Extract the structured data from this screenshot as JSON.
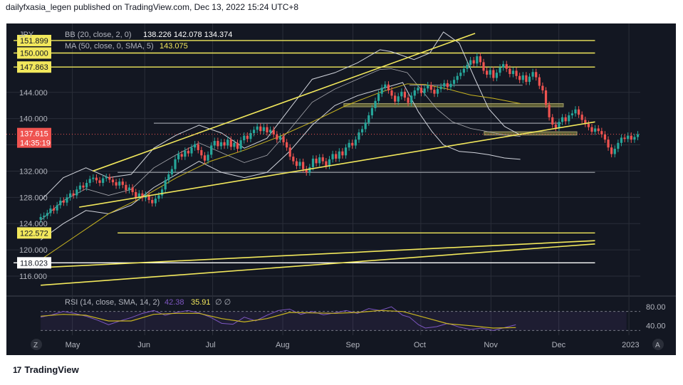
{
  "header": {
    "publisher_line": "dailyfxasia_legen published on TradingView.com, Dec 13, 2022 15:24 UTC+8"
  },
  "footer": {
    "brand": "TradingView",
    "logo_text": "17"
  },
  "colors": {
    "background": "#131722",
    "grid": "#2a2e39",
    "text": "#b2b5be",
    "up": "#26a69a",
    "down": "#ef5350",
    "yellow": "#f2e85c",
    "bb": "#d1d4dc",
    "ma": "#c9b520",
    "rsi": "#7e57c2",
    "rsi_ma": "#c9b520"
  },
  "chart_data": {
    "type": "candlestick",
    "symbol": "JPY",
    "legend": {
      "bb_label": "BB (20, close, 2, 0)",
      "bb_values": [
        "138.226",
        "142.078",
        "134.374"
      ],
      "ma_label": "MA (50, close, 0, SMA, 5)",
      "ma_value": "143.075"
    },
    "price_axis": {
      "ticks": [
        "144.000",
        "140.000",
        "136.000",
        "132.000",
        "128.000",
        "124.000",
        "120.000",
        "116.000"
      ],
      "tick_values": [
        144,
        140,
        136,
        132,
        128,
        124,
        120,
        116
      ],
      "range": [
        113.5,
        154.5
      ],
      "highlighted_labels": [
        {
          "text": "151.899",
          "value": 151.899,
          "style": "yellow"
        },
        {
          "text": "150.000",
          "value": 150.0,
          "style": "yellow"
        },
        {
          "text": "147.863",
          "value": 147.863,
          "style": "yellow"
        },
        {
          "text": "122.572",
          "value": 122.572,
          "style": "yellow"
        },
        {
          "text": "118.023",
          "value": 118.023,
          "style": "white"
        }
      ],
      "current_price": {
        "text": "137.615",
        "countdown": "14:35:19",
        "value": 137.615
      }
    },
    "time_axis": {
      "labels": [
        "May",
        "Jun",
        "Jul",
        "Aug",
        "Sep",
        "Oct",
        "Nov",
        "Dec",
        "2023"
      ],
      "label_days": [
        14,
        46,
        76,
        107,
        138,
        168,
        199,
        229,
        260
      ],
      "range_days": [
        -12,
        265
      ]
    },
    "candles": {
      "start_day": 0,
      "closes": [
        125.0,
        125.2,
        125.6,
        126.3,
        126.0,
        126.8,
        127.5,
        127.2,
        128.0,
        128.6,
        128.3,
        129.2,
        129.8,
        129.5,
        130.2,
        130.8,
        131.0,
        130.6,
        130.2,
        130.9,
        131.1,
        130.7,
        130.3,
        129.8,
        130.4,
        129.9,
        129.1,
        129.5,
        128.8,
        128.0,
        128.6,
        127.9,
        128.4,
        127.6,
        127.1,
        127.8,
        128.3,
        129.2,
        130.6,
        131.5,
        132.3,
        133.8,
        134.6,
        134.2,
        135.1,
        134.7,
        135.6,
        136.1,
        135.2,
        134.4,
        133.6,
        134.5,
        135.9,
        136.6,
        135.8,
        136.4,
        135.9,
        136.8,
        135.7,
        136.3,
        135.4,
        136.7,
        137.4,
        136.9,
        137.8,
        138.3,
        138.8,
        138.1,
        138.7,
        137.9,
        138.3,
        137.6,
        136.8,
        137.3,
        136.4,
        135.6,
        134.2,
        133.5,
        132.8,
        133.4,
        132.3,
        131.8,
        132.6,
        133.9,
        133.2,
        134.1,
        133.5,
        132.8,
        133.8,
        134.6,
        133.9,
        135.0,
        134.4,
        135.6,
        136.3,
        135.9,
        136.8,
        137.9,
        138.4,
        139.4,
        140.5,
        141.6,
        142.7,
        143.8,
        144.7,
        145.2,
        144.3,
        143.5,
        142.6,
        143.4,
        144.1,
        143.2,
        142.4,
        143.5,
        144.3,
        144.7,
        143.9,
        144.6,
        145.1,
        144.4,
        143.8,
        144.5,
        144.9,
        145.4,
        144.8,
        145.3,
        145.9,
        146.5,
        147.0,
        147.6,
        148.2,
        148.9,
        148.4,
        149.5,
        148.6,
        147.3,
        146.7,
        147.4,
        146.2,
        147.0,
        147.8,
        148.3,
        147.6,
        146.8,
        147.3,
        146.5,
        145.9,
        146.6,
        145.6,
        146.4,
        147.1,
        146.3,
        145.0,
        144.3,
        142.1,
        140.2,
        139.1,
        138.6,
        139.5,
        140.2,
        139.6,
        140.5,
        140.8,
        141.4,
        140.6,
        139.8,
        139.2,
        138.7,
        138.0,
        138.5,
        138.1,
        137.6,
        136.8,
        135.6,
        134.6,
        135.4,
        136.3,
        137.1,
        136.9,
        137.4,
        136.8,
        137.2,
        137.6
      ],
      "spacing_days": 1.45
    },
    "bollinger_upper": [
      [
        0,
        127.5
      ],
      [
        10,
        131
      ],
      [
        20,
        132.5
      ],
      [
        30,
        131
      ],
      [
        40,
        131.5
      ],
      [
        50,
        135.5
      ],
      [
        60,
        137.5
      ],
      [
        70,
        139
      ],
      [
        80,
        137.8
      ],
      [
        90,
        135.5
      ],
      [
        100,
        137
      ],
      [
        110,
        141.5
      ],
      [
        120,
        146
      ],
      [
        130,
        147
      ],
      [
        140,
        148.5
      ],
      [
        150,
        150.5
      ],
      [
        155,
        150.2
      ],
      [
        165,
        149
      ],
      [
        172,
        150
      ],
      [
        178,
        153.2
      ],
      [
        185,
        151.5
      ],
      [
        192,
        146
      ],
      [
        198,
        141.5
      ],
      [
        205,
        138.8
      ],
      [
        212,
        137.5
      ]
    ],
    "bollinger_lower": [
      [
        0,
        121.5
      ],
      [
        10,
        124
      ],
      [
        20,
        126
      ],
      [
        30,
        125.5
      ],
      [
        40,
        126.8
      ],
      [
        50,
        129.5
      ],
      [
        60,
        131.5
      ],
      [
        70,
        133.5
      ],
      [
        80,
        131.8
      ],
      [
        90,
        131
      ],
      [
        100,
        131.8
      ],
      [
        110,
        135
      ],
      [
        120,
        139
      ],
      [
        130,
        142
      ],
      [
        140,
        143.5
      ],
      [
        150,
        144.5
      ],
      [
        155,
        145
      ],
      [
        160,
        145.5
      ],
      [
        167,
        141
      ],
      [
        173,
        138
      ],
      [
        178,
        136
      ],
      [
        185,
        135
      ],
      [
        192,
        134.8
      ],
      [
        198,
        134.5
      ],
      [
        205,
        134
      ],
      [
        212,
        133.8
      ]
    ],
    "bollinger_mid": [
      [
        0,
        124.5
      ],
      [
        10,
        127.5
      ],
      [
        20,
        129.3
      ],
      [
        30,
        128.3
      ],
      [
        40,
        129.2
      ],
      [
        50,
        132.5
      ],
      [
        60,
        134.5
      ],
      [
        70,
        136.3
      ],
      [
        80,
        134.8
      ],
      [
        90,
        133.3
      ],
      [
        100,
        134.4
      ],
      [
        110,
        138.3
      ],
      [
        120,
        142.5
      ],
      [
        130,
        144.5
      ],
      [
        140,
        146
      ],
      [
        150,
        147.5
      ],
      [
        155,
        147.6
      ],
      [
        162,
        147
      ],
      [
        168,
        144.5
      ],
      [
        175,
        141.5
      ],
      [
        182,
        139.5
      ],
      [
        190,
        138.5
      ],
      [
        198,
        138
      ],
      [
        205,
        137.5
      ],
      [
        212,
        137.3
      ]
    ],
    "ma50": [
      [
        0,
        118.5
      ],
      [
        15,
        122
      ],
      [
        30,
        125.5
      ],
      [
        45,
        128
      ],
      [
        60,
        131
      ],
      [
        75,
        133.5
      ],
      [
        90,
        135.2
      ],
      [
        105,
        137.2
      ],
      [
        120,
        139.5
      ],
      [
        135,
        142
      ],
      [
        150,
        144
      ],
      [
        162,
        145.3
      ],
      [
        170,
        145.2
      ],
      [
        180,
        144.5
      ],
      [
        190,
        143.6
      ],
      [
        200,
        143.1
      ],
      [
        212,
        142.3
      ]
    ],
    "trendlines": [
      {
        "p1": [
          23,
          132
        ],
        "p2": [
          192,
          153.0
        ],
        "color": "yellow"
      },
      {
        "p1": [
          17,
          126.5
        ],
        "p2": [
          245,
          139.5
        ],
        "color": "yellow"
      },
      {
        "p1": [
          0,
          117.3
        ],
        "p2": [
          245,
          121.4
        ],
        "color": "yellow"
      },
      {
        "p1": [
          0,
          114.6
        ],
        "p2": [
          245,
          120.9
        ],
        "color": "yellow"
      }
    ],
    "hlines": [
      {
        "value": 151.899,
        "from": -12,
        "to": 245,
        "color": "yellow"
      },
      {
        "value": 150.0,
        "from": -12,
        "to": 245,
        "color": "yellow"
      },
      {
        "value": 147.863,
        "from": -12,
        "to": 245,
        "color": "yellow"
      },
      {
        "value": 122.572,
        "from": 34,
        "to": 245,
        "color": "yellow"
      },
      {
        "value": 118.023,
        "from": -12,
        "to": 245,
        "color": "white"
      },
      {
        "value": 131.8,
        "from": 34,
        "to": 245,
        "color": "gray"
      },
      {
        "value": 139.3,
        "from": 50,
        "to": 230,
        "color": "gray"
      },
      {
        "value": 145.1,
        "from": 163,
        "to": 213,
        "color": "gray"
      }
    ],
    "zones": [
      {
        "from": 134,
        "to": 231,
        "low": 141.8,
        "high": 142.3
      },
      {
        "from": 196,
        "to": 237,
        "low": 137.5,
        "high": 138.0
      }
    ],
    "rsi": {
      "label": "RSI (14, close, SMA, 14, 2)",
      "value_a": "42.38",
      "value_b": "35.91",
      "extra": "∅ ∅",
      "axis_ticks": [
        "80.00",
        "40.00"
      ],
      "tick_values": [
        80,
        40
      ],
      "range": [
        20,
        95
      ],
      "band": [
        30,
        70
      ],
      "line": [
        [
          0,
          58
        ],
        [
          5,
          63
        ],
        [
          10,
          70
        ],
        [
          15,
          66
        ],
        [
          20,
          60
        ],
        [
          25,
          52
        ],
        [
          30,
          42
        ],
        [
          35,
          50
        ],
        [
          40,
          57
        ],
        [
          45,
          66
        ],
        [
          50,
          72
        ],
        [
          55,
          62
        ],
        [
          60,
          68
        ],
        [
          65,
          72
        ],
        [
          70,
          67
        ],
        [
          75,
          58
        ],
        [
          80,
          45
        ],
        [
          85,
          43
        ],
        [
          90,
          58
        ],
        [
          95,
          50
        ],
        [
          100,
          62
        ],
        [
          105,
          72
        ],
        [
          110,
          75
        ],
        [
          115,
          64
        ],
        [
          120,
          70
        ],
        [
          125,
          63
        ],
        [
          130,
          67
        ],
        [
          135,
          72
        ],
        [
          140,
          66
        ],
        [
          145,
          76
        ],
        [
          150,
          72
        ],
        [
          155,
          80
        ],
        [
          160,
          62
        ],
        [
          163,
          58
        ],
        [
          167,
          42
        ],
        [
          170,
          35
        ],
        [
          175,
          38
        ],
        [
          180,
          45
        ],
        [
          185,
          37
        ],
        [
          190,
          32
        ],
        [
          195,
          35
        ],
        [
          200,
          30
        ],
        [
          205,
          36
        ],
        [
          210,
          42
        ]
      ],
      "ma_line": [
        [
          0,
          60
        ],
        [
          10,
          64
        ],
        [
          20,
          62
        ],
        [
          30,
          50
        ],
        [
          40,
          50
        ],
        [
          50,
          64
        ],
        [
          60,
          66
        ],
        [
          70,
          66
        ],
        [
          80,
          55
        ],
        [
          90,
          48
        ],
        [
          100,
          55
        ],
        [
          110,
          68
        ],
        [
          120,
          67
        ],
        [
          130,
          66
        ],
        [
          140,
          68
        ],
        [
          150,
          72
        ],
        [
          160,
          70
        ],
        [
          170,
          57
        ],
        [
          180,
          44
        ],
        [
          190,
          40
        ],
        [
          200,
          35
        ],
        [
          210,
          36
        ]
      ]
    }
  }
}
